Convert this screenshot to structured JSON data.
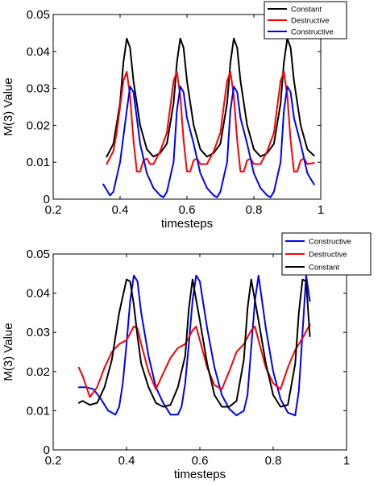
{
  "chart_data": [
    {
      "type": "line",
      "title": "",
      "xlabel": "timesteps",
      "ylabel": "M(3) Value",
      "xlim": [
        0.2,
        1
      ],
      "ylim": [
        0,
        0.05
      ],
      "xticks": [
        0.2,
        0.4,
        0.6,
        0.8,
        1
      ],
      "xtick_labels": [
        "0.2",
        "0.4",
        "0.6",
        "0.8",
        "1"
      ],
      "yticks": [
        0,
        0.01,
        0.02,
        0.03,
        0.04,
        0.05
      ],
      "ytick_labels": [
        "0",
        "0.01",
        "0.02",
        "0.03",
        "0.04",
        "0.05"
      ],
      "legend_position": "top-right",
      "series": [
        {
          "name": "Constant",
          "color": "#000000",
          "x": [
            0.36,
            0.38,
            0.4,
            0.41,
            0.42,
            0.43,
            0.44,
            0.46,
            0.48,
            0.5,
            0.52,
            0.54,
            0.56,
            0.57,
            0.58,
            0.59,
            0.6,
            0.62,
            0.64,
            0.66,
            0.68,
            0.7,
            0.72,
            0.73,
            0.74,
            0.75,
            0.76,
            0.78,
            0.8,
            0.82,
            0.84,
            0.86,
            0.88,
            0.89,
            0.9,
            0.91,
            0.92,
            0.94,
            0.96,
            0.98
          ],
          "y": [
            0.0115,
            0.015,
            0.026,
            0.037,
            0.0435,
            0.041,
            0.032,
            0.02,
            0.0135,
            0.0115,
            0.0125,
            0.015,
            0.026,
            0.037,
            0.0435,
            0.041,
            0.032,
            0.02,
            0.0135,
            0.0115,
            0.0125,
            0.015,
            0.026,
            0.037,
            0.0435,
            0.041,
            0.032,
            0.02,
            0.0135,
            0.0115,
            0.0125,
            0.015,
            0.026,
            0.037,
            0.0435,
            0.041,
            0.032,
            0.02,
            0.0135,
            0.0118
          ]
        },
        {
          "name": "Destructive",
          "color": "#ff0000",
          "x": [
            0.36,
            0.38,
            0.39,
            0.4,
            0.41,
            0.42,
            0.43,
            0.44,
            0.45,
            0.46,
            0.47,
            0.48,
            0.49,
            0.5,
            0.52,
            0.54,
            0.55,
            0.56,
            0.57,
            0.58,
            0.59,
            0.6,
            0.61,
            0.62,
            0.63,
            0.64,
            0.65,
            0.66,
            0.68,
            0.7,
            0.71,
            0.72,
            0.73,
            0.74,
            0.75,
            0.76,
            0.77,
            0.78,
            0.79,
            0.8,
            0.81,
            0.82,
            0.84,
            0.86,
            0.87,
            0.88,
            0.89,
            0.9,
            0.91,
            0.92,
            0.93,
            0.94,
            0.95,
            0.96,
            0.98
          ],
          "y": [
            0.0095,
            0.013,
            0.018,
            0.025,
            0.032,
            0.0345,
            0.028,
            0.016,
            0.0075,
            0.0075,
            0.0105,
            0.011,
            0.0095,
            0.0095,
            0.013,
            0.018,
            0.025,
            0.032,
            0.0345,
            0.028,
            0.016,
            0.0075,
            0.0075,
            0.0105,
            0.011,
            0.0095,
            0.0095,
            0.0095,
            0.013,
            0.018,
            0.025,
            0.032,
            0.0345,
            0.028,
            0.016,
            0.0075,
            0.0075,
            0.0105,
            0.011,
            0.0095,
            0.0095,
            0.0095,
            0.013,
            0.018,
            0.025,
            0.032,
            0.0345,
            0.028,
            0.016,
            0.0075,
            0.0075,
            0.0105,
            0.011,
            0.0095,
            0.0098
          ]
        },
        {
          "name": "Constructive",
          "color": "#0000ff",
          "x": [
            0.35,
            0.36,
            0.37,
            0.38,
            0.4,
            0.42,
            0.43,
            0.44,
            0.45,
            0.46,
            0.48,
            0.5,
            0.52,
            0.53,
            0.54,
            0.56,
            0.57,
            0.58,
            0.59,
            0.6,
            0.62,
            0.64,
            0.66,
            0.68,
            0.69,
            0.7,
            0.72,
            0.73,
            0.74,
            0.75,
            0.76,
            0.78,
            0.8,
            0.82,
            0.84,
            0.85,
            0.86,
            0.88,
            0.89,
            0.9,
            0.91,
            0.92,
            0.94,
            0.96,
            0.98
          ],
          "y": [
            0.004,
            0.0025,
            0.001,
            0.002,
            0.01,
            0.024,
            0.0305,
            0.029,
            0.022,
            0.015,
            0.007,
            0.003,
            0.001,
            0.0005,
            0.002,
            0.01,
            0.024,
            0.0305,
            0.029,
            0.022,
            0.015,
            0.007,
            0.003,
            0.001,
            0.0005,
            0.002,
            0.01,
            0.024,
            0.0305,
            0.029,
            0.022,
            0.015,
            0.007,
            0.003,
            0.001,
            0.0005,
            0.002,
            0.01,
            0.024,
            0.0305,
            0.029,
            0.022,
            0.015,
            0.007,
            0.004
          ]
        }
      ]
    },
    {
      "type": "line",
      "title": "",
      "xlabel": "timesteps",
      "ylabel": "M(3) Value",
      "xlim": [
        0.2,
        1
      ],
      "ylim": [
        0,
        0.05
      ],
      "xticks": [
        0.2,
        0.4,
        0.6,
        0.8,
        1
      ],
      "xtick_labels": [
        "0.2",
        "0.4",
        "0.6",
        "0.8",
        "1"
      ],
      "yticks": [
        0,
        0.01,
        0.02,
        0.03,
        0.04,
        0.05
      ],
      "ytick_labels": [
        "0",
        "0.01",
        "0.02",
        "0.03",
        "0.04",
        "0.05"
      ],
      "legend_position": "top-right",
      "series": [
        {
          "name": "Constructive",
          "color": "#0000ff",
          "x": [
            0.27,
            0.29,
            0.31,
            0.33,
            0.35,
            0.37,
            0.38,
            0.39,
            0.4,
            0.41,
            0.42,
            0.43,
            0.44,
            0.46,
            0.48,
            0.5,
            0.52,
            0.54,
            0.55,
            0.56,
            0.57,
            0.58,
            0.59,
            0.6,
            0.62,
            0.64,
            0.66,
            0.68,
            0.7,
            0.72,
            0.73,
            0.74,
            0.75,
            0.76,
            0.78,
            0.8,
            0.82,
            0.84,
            0.86,
            0.87,
            0.88,
            0.89,
            0.9
          ],
          "y": [
            0.016,
            0.016,
            0.0155,
            0.013,
            0.01,
            0.009,
            0.011,
            0.017,
            0.027,
            0.038,
            0.0445,
            0.043,
            0.035,
            0.024,
            0.016,
            0.012,
            0.009,
            0.009,
            0.011,
            0.017,
            0.027,
            0.038,
            0.0445,
            0.043,
            0.031,
            0.021,
            0.014,
            0.0105,
            0.0088,
            0.01,
            0.014,
            0.026,
            0.038,
            0.0445,
            0.031,
            0.02,
            0.013,
            0.0095,
            0.0088,
            0.015,
            0.03,
            0.0445,
            0.038
          ]
        },
        {
          "name": "Destructive",
          "color": "#ff0000",
          "x": [
            0.27,
            0.28,
            0.3,
            0.32,
            0.34,
            0.36,
            0.38,
            0.4,
            0.42,
            0.43,
            0.44,
            0.46,
            0.48,
            0.5,
            0.52,
            0.54,
            0.56,
            0.58,
            0.59,
            0.6,
            0.62,
            0.64,
            0.66,
            0.68,
            0.7,
            0.72,
            0.74,
            0.75,
            0.76,
            0.78,
            0.8,
            0.82,
            0.84,
            0.86,
            0.88,
            0.9
          ],
          "y": [
            0.021,
            0.019,
            0.0135,
            0.016,
            0.021,
            0.025,
            0.027,
            0.028,
            0.0315,
            0.031,
            0.027,
            0.02,
            0.0155,
            0.0195,
            0.0235,
            0.026,
            0.027,
            0.0305,
            0.0315,
            0.028,
            0.021,
            0.0165,
            0.0155,
            0.02,
            0.025,
            0.027,
            0.0305,
            0.0315,
            0.028,
            0.021,
            0.017,
            0.0155,
            0.021,
            0.0255,
            0.0285,
            0.032
          ]
        },
        {
          "name": "Constant",
          "color": "#000000",
          "x": [
            0.27,
            0.28,
            0.3,
            0.32,
            0.34,
            0.36,
            0.38,
            0.4,
            0.41,
            0.42,
            0.43,
            0.44,
            0.46,
            0.48,
            0.5,
            0.52,
            0.54,
            0.56,
            0.57,
            0.58,
            0.6,
            0.62,
            0.64,
            0.66,
            0.68,
            0.7,
            0.72,
            0.73,
            0.74,
            0.76,
            0.78,
            0.8,
            0.82,
            0.84,
            0.86,
            0.87,
            0.88,
            0.89,
            0.9
          ],
          "y": [
            0.012,
            0.0125,
            0.0115,
            0.012,
            0.016,
            0.023,
            0.035,
            0.0435,
            0.043,
            0.037,
            0.029,
            0.022,
            0.016,
            0.012,
            0.011,
            0.0115,
            0.016,
            0.024,
            0.036,
            0.0435,
            0.033,
            0.022,
            0.014,
            0.011,
            0.011,
            0.0125,
            0.023,
            0.036,
            0.0435,
            0.033,
            0.022,
            0.014,
            0.011,
            0.0115,
            0.022,
            0.035,
            0.0435,
            0.043,
            0.029
          ]
        }
      ]
    }
  ]
}
